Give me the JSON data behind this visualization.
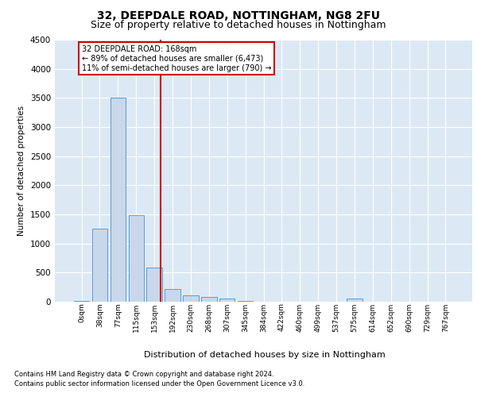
{
  "title1": "32, DEEPDALE ROAD, NOTTINGHAM, NG8 2FU",
  "title2": "Size of property relative to detached houses in Nottingham",
  "xlabel": "Distribution of detached houses by size in Nottingham",
  "ylabel": "Number of detached properties",
  "footnote1": "Contains HM Land Registry data © Crown copyright and database right 2024.",
  "footnote2": "Contains public sector information licensed under the Open Government Licence v3.0.",
  "bar_labels": [
    "0sqm",
    "38sqm",
    "77sqm",
    "115sqm",
    "153sqm",
    "192sqm",
    "230sqm",
    "268sqm",
    "307sqm",
    "345sqm",
    "384sqm",
    "422sqm",
    "460sqm",
    "499sqm",
    "537sqm",
    "575sqm",
    "614sqm",
    "652sqm",
    "690sqm",
    "729sqm",
    "767sqm"
  ],
  "bar_values": [
    20,
    1250,
    3500,
    1480,
    580,
    220,
    110,
    80,
    50,
    10,
    5,
    2,
    2,
    0,
    0,
    60,
    0,
    0,
    0,
    0,
    0
  ],
  "bar_color": "#c8d8ea",
  "bar_edge_color": "#5b9bd5",
  "vline_x": 4.35,
  "vline_color": "#cc0000",
  "annotation_text": "32 DEEPDALE ROAD: 168sqm\n← 89% of detached houses are smaller (6,473)\n11% of semi-detached houses are larger (790) →",
  "annotation_box_color": "#ffffff",
  "annotation_box_edge": "#cc0000",
  "ylim": [
    0,
    4500
  ],
  "yticks": [
    0,
    500,
    1000,
    1500,
    2000,
    2500,
    3000,
    3500,
    4000,
    4500
  ],
  "axes_bg": "#dce9f5",
  "grid_color": "#ffffff",
  "title1_fontsize": 10,
  "title2_fontsize": 9
}
